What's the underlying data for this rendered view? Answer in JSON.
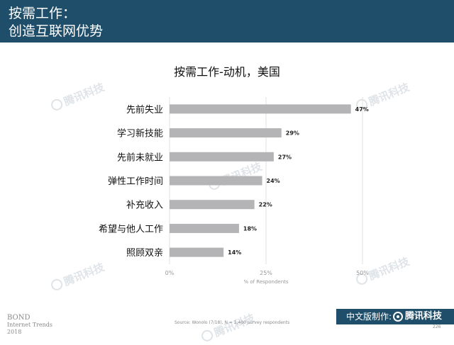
{
  "header": {
    "line1": "按需工作：",
    "line2": "创造互联网优势"
  },
  "chart_data": {
    "type": "bar",
    "orientation": "horizontal",
    "title": "按需工作-动机，美国",
    "xlabel": "% of Respondents",
    "categories": [
      "先前失业",
      "学习新技能",
      "先前未就业",
      "弹性工作时间",
      "补充收入",
      "希望与他人工作",
      "照顾双亲"
    ],
    "values": [
      47,
      29,
      27,
      24,
      22,
      18,
      14
    ],
    "value_labels": [
      "47%",
      "29%",
      "27%",
      "24%",
      "22%",
      "18%",
      "14%"
    ],
    "xticks": [
      0,
      25,
      50
    ],
    "xtick_labels": [
      "0%",
      "25%",
      "50%"
    ],
    "xlim": [
      0,
      50
    ],
    "grid": true,
    "bar_color": "#b4b3b5"
  },
  "footer": {
    "source": "Source: Wonolo (7/18), N = 1,400 survey respondents",
    "page": "226",
    "logo_line1": "BOND",
    "logo_line2": "Internet Trends",
    "logo_line3": "2018",
    "banner_label": "中文版制作:",
    "banner_brand": "腾讯科技"
  },
  "watermark_text": "腾讯科技",
  "colors": {
    "header_bg": "#1f4e6a",
    "bar": "#b4b3b5",
    "gridline": "#e2e2e2"
  }
}
